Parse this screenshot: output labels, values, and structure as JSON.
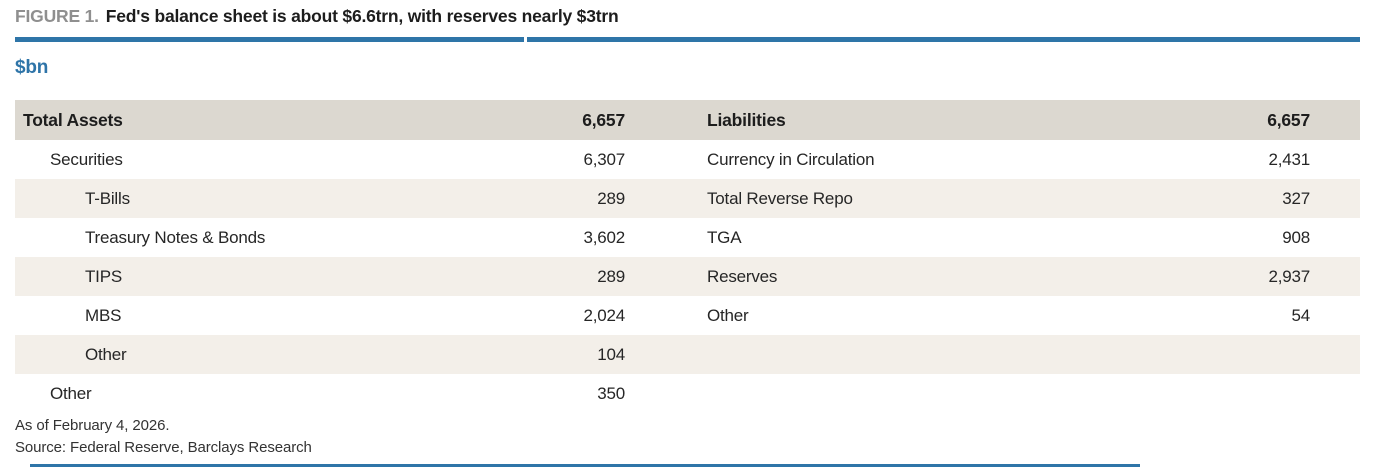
{
  "figure": {
    "label": "FIGURE 1.",
    "title": "Fed's balance sheet is about $6.6trn, with reserves nearly $3trn",
    "units": "$bn"
  },
  "colors": {
    "accent_blue": "#2e75a8",
    "header_band": "#dcd8d0",
    "row_stripe": "#f3efe9",
    "figure_label_gray": "#8f8f8f",
    "text_dark": "#1d1d1d"
  },
  "table": {
    "assets": {
      "header_label": "Total Assets",
      "header_value": "6,657",
      "rows": [
        {
          "label": "Securities",
          "value": "6,307"
        },
        {
          "label": "T-Bills",
          "value": "289"
        },
        {
          "label": "Treasury Notes & Bonds",
          "value": "3,602"
        },
        {
          "label": "TIPS",
          "value": "289"
        },
        {
          "label": "MBS",
          "value": "2,024"
        },
        {
          "label": "Other",
          "value": "104"
        },
        {
          "label": "Other",
          "value": "350"
        }
      ]
    },
    "liabilities": {
      "header_label": "Liabilities",
      "header_value": "6,657",
      "rows": [
        {
          "label": "Currency in Circulation",
          "value": "2,431"
        },
        {
          "label": "Total Reverse Repo",
          "value": "327"
        },
        {
          "label": "TGA",
          "value": "908"
        },
        {
          "label": "Reserves",
          "value": "2,937"
        },
        {
          "label": "Other",
          "value": "54"
        },
        {
          "label": "",
          "value": ""
        },
        {
          "label": "",
          "value": ""
        }
      ]
    }
  },
  "footer": {
    "as_of": "As of February 4, 2026.",
    "source": "Source: Federal Reserve, Barclays Research"
  }
}
